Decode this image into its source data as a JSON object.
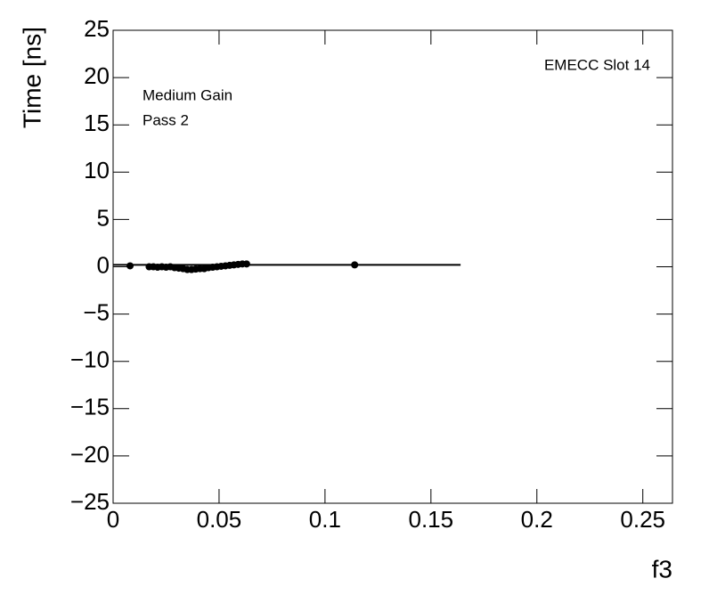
{
  "chart_data": {
    "type": "scatter",
    "annotations": [
      "EMECC Slot 14",
      "Medium Gain",
      "Pass 2"
    ],
    "x_label": "f3",
    "y_label": "Time [ns]",
    "x": [
      0.008,
      0.017,
      0.019,
      0.021,
      0.023,
      0.025,
      0.027,
      0.029,
      0.031,
      0.033,
      0.035,
      0.037,
      0.039,
      0.041,
      0.043,
      0.045,
      0.047,
      0.049,
      0.051,
      0.053,
      0.055,
      0.057,
      0.059,
      0.061,
      0.063,
      0.114
    ],
    "values": [
      0.1,
      0.0,
      0.0,
      -0.05,
      0.0,
      -0.05,
      0.0,
      -0.1,
      -0.15,
      -0.2,
      -0.3,
      -0.3,
      -0.25,
      -0.2,
      -0.2,
      -0.1,
      -0.05,
      0.0,
      0.05,
      0.1,
      0.15,
      0.2,
      0.25,
      0.3,
      0.3,
      0.2
    ],
    "color": "#000000",
    "fit_line": {
      "x": [
        0,
        0.164
      ],
      "values": [
        0.2,
        0.2
      ],
      "color": "#000000"
    },
    "xlim": [
      0,
      0.264
    ],
    "xticks": [
      0,
      0.05,
      0.1,
      0.15,
      0.2,
      0.25
    ],
    "ylim": [
      -25,
      25
    ],
    "yticks": [
      {
        "value": -25,
        "label": "−25"
      },
      {
        "value": -20,
        "label": "−20"
      },
      {
        "value": -15,
        "label": "−15"
      },
      {
        "value": -10,
        "label": "−10"
      },
      {
        "value": -5,
        "label": "−5"
      },
      0,
      5,
      10,
      15,
      20,
      25
    ]
  }
}
